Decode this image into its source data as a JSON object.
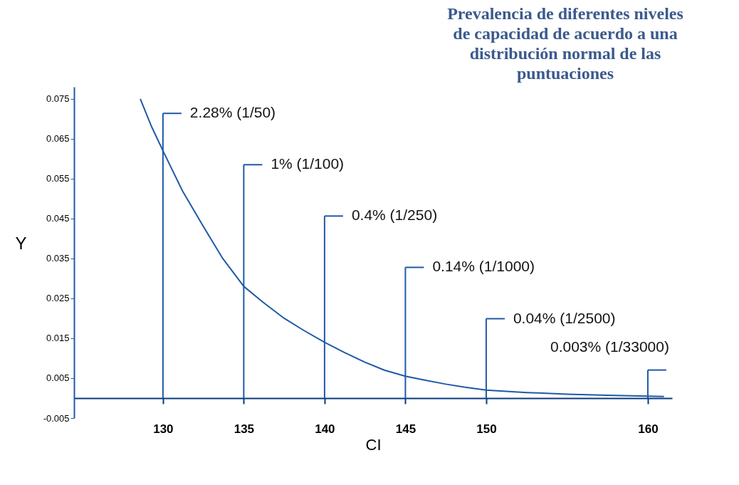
{
  "chart_data": {
    "type": "line",
    "title": "Prevalencia de diferentes niveles de capacidad de acuerdo a una distribución normal de las puntuaciones",
    "xlabel": "CI",
    "ylabel": "Y",
    "x": [
      128.6,
      129.3,
      130,
      131.2,
      132.5,
      133.7,
      135,
      136.2,
      137.5,
      138.7,
      140,
      141.2,
      142.5,
      143.7,
      145,
      146.2,
      147.5,
      148.7,
      150,
      152.5,
      155,
      157.5,
      160,
      161
    ],
    "series": [
      {
        "color": "#1f5aa6",
        "values": [
          0.075,
          0.068,
          0.062,
          0.052,
          0.043,
          0.035,
          0.028,
          0.024,
          0.02,
          0.017,
          0.014,
          0.0115,
          0.009,
          0.007,
          0.0055,
          0.0045,
          0.0035,
          0.0027,
          0.002,
          0.0014,
          0.001,
          0.0007,
          0.0005,
          0.0004
        ]
      }
    ],
    "xlim": [
      124.5,
      161.5
    ],
    "ylim": [
      -0.005,
      0.078
    ],
    "xticks": [
      130,
      135,
      140,
      145,
      150,
      160
    ],
    "yticks": [
      {
        "value": -0.005,
        "label": "-0.005"
      },
      {
        "value": 0.005,
        "label": "0.005"
      },
      {
        "value": 0.015,
        "label": "0.015"
      },
      {
        "value": 0.025,
        "label": "0.025"
      },
      {
        "value": 0.035,
        "label": "0.035"
      },
      {
        "value": 0.045,
        "label": "0.045"
      },
      {
        "value": 0.055,
        "label": "0.055"
      },
      {
        "value": 0.065,
        "label": "0.065"
      },
      {
        "value": 0.075,
        "label": "0.075"
      }
    ],
    "ref_lines": [
      {
        "axis": "x",
        "value": 130,
        "color": "#1f5aa6"
      },
      {
        "axis": "x",
        "value": 135,
        "color": "#1f5aa6"
      },
      {
        "axis": "x",
        "value": 140,
        "color": "#1f5aa6"
      },
      {
        "axis": "x",
        "value": 145,
        "color": "#1f5aa6"
      },
      {
        "axis": "x",
        "value": 150,
        "color": "#1f5aa6"
      },
      {
        "axis": "x",
        "value": 160,
        "color": "#1f5aa6"
      }
    ],
    "annotations": [
      "2.28% (1/50)",
      "1% (1/100)",
      "0.4% (1/250)",
      "0.14% (1/1000)",
      "0.04% (1/2500)",
      "0.003% (1/33000)"
    ],
    "grid": false,
    "marker": "none",
    "line_style": "solid"
  }
}
